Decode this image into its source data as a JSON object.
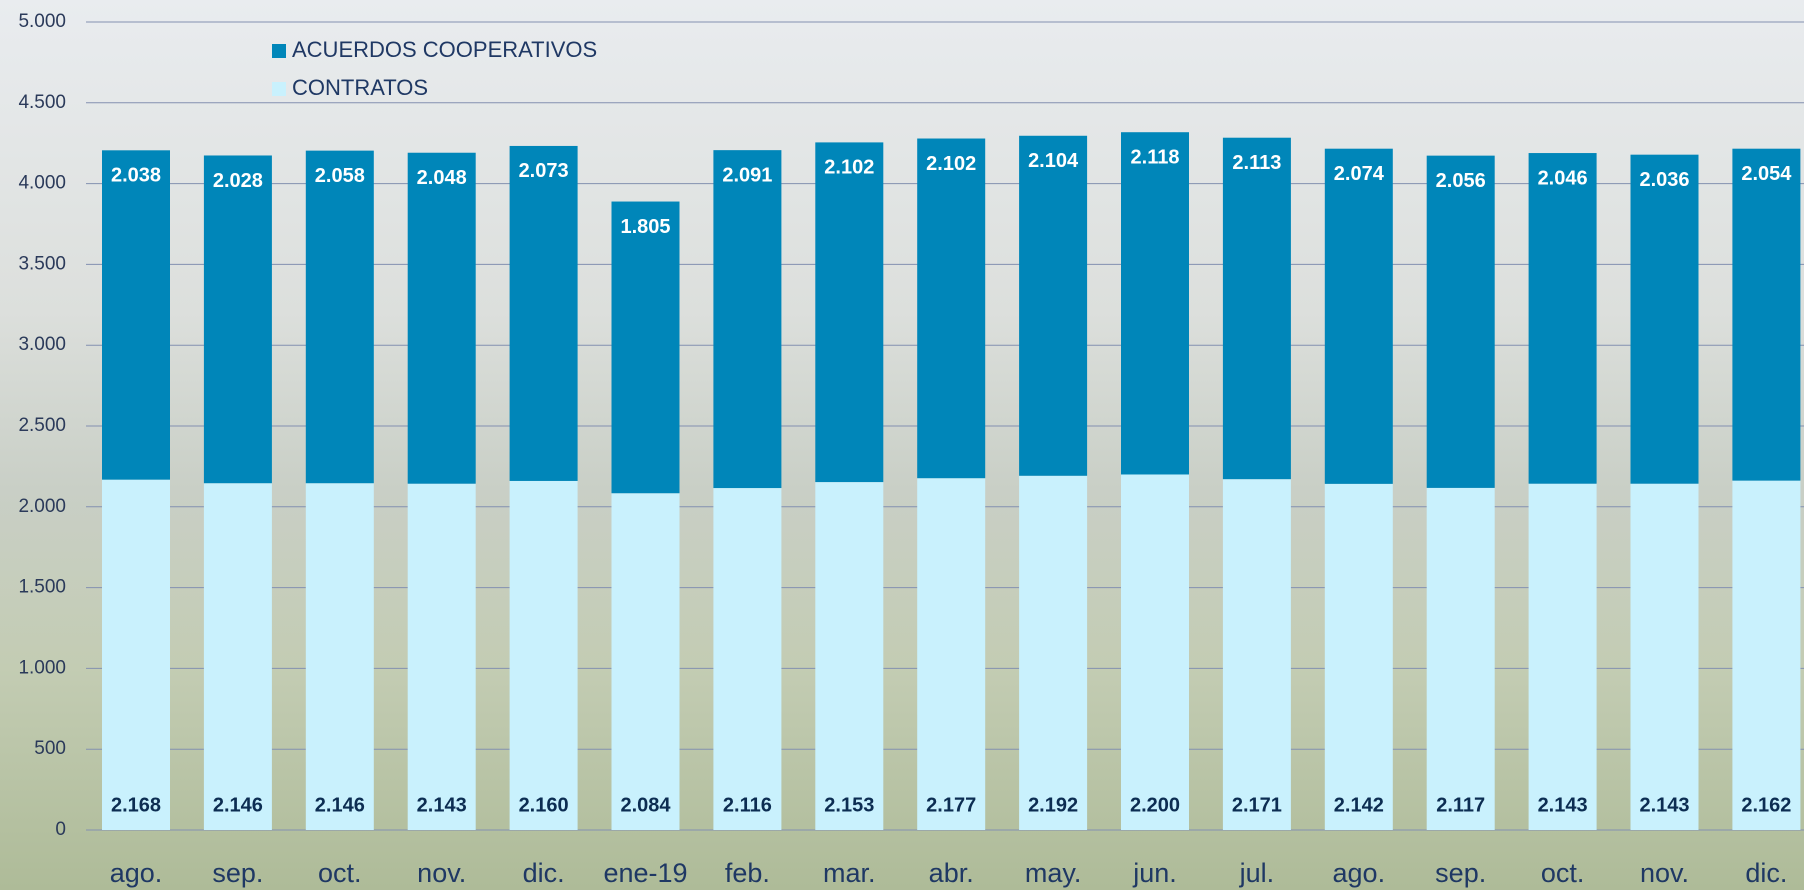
{
  "chart_data": {
    "type": "stacked_bar",
    "categories": [
      "ago.",
      "sep.",
      "oct.",
      "nov.",
      "dic.",
      "ene-19",
      "feb.",
      "mar.",
      "abr.",
      "may.",
      "jun.",
      "jul.",
      "ago.",
      "sep.",
      "oct.",
      "nov.",
      "dic."
    ],
    "series": [
      {
        "name": "CONTRATOS",
        "color": "#c9f1fd",
        "values": [
          2168,
          2146,
          2146,
          2143,
          2160,
          2084,
          2116,
          2153,
          2177,
          2192,
          2200,
          2171,
          2142,
          2117,
          2143,
          2143,
          2162
        ],
        "value_labels": [
          "2.168",
          "2.146",
          "2.146",
          "2.143",
          "2.160",
          "2.084",
          "2.116",
          "2.153",
          "2.177",
          "2.192",
          "2.200",
          "2.171",
          "2.142",
          "2.117",
          "2.143",
          "2.143",
          "2.162"
        ]
      },
      {
        "name": "ACUERDOS COOPERATIVOS",
        "color": "#0086b9",
        "values": [
          2038,
          2028,
          2058,
          2048,
          2073,
          1805,
          2091,
          2102,
          2102,
          2104,
          2118,
          2113,
          2074,
          2056,
          2046,
          2036,
          2054
        ],
        "value_labels": [
          "2.038",
          "2.028",
          "2.058",
          "2.048",
          "2.073",
          "1.805",
          "2.091",
          "2.102",
          "2.102",
          "2.104",
          "2.118",
          "2.113",
          "2.074",
          "2.056",
          "2.046",
          "2.036",
          "2.054"
        ]
      }
    ],
    "ylim": [
      0,
      5000
    ],
    "yticks": [
      0,
      500,
      {
        "value": 1000,
        "label": "1.000"
      },
      {
        "value": 1500,
        "label": "1.500"
      },
      {
        "value": 2000,
        "label": "2.000"
      },
      {
        "value": 2500,
        "label": "2.500"
      },
      {
        "value": 3000,
        "label": "3.000"
      },
      {
        "value": 3500,
        "label": "3.500"
      },
      {
        "value": 4000,
        "label": "4.000"
      },
      {
        "value": 4500,
        "label": "4.500"
      },
      {
        "value": 5000,
        "label": "5.000"
      }
    ],
    "grid": true,
    "legend": "top-left"
  }
}
